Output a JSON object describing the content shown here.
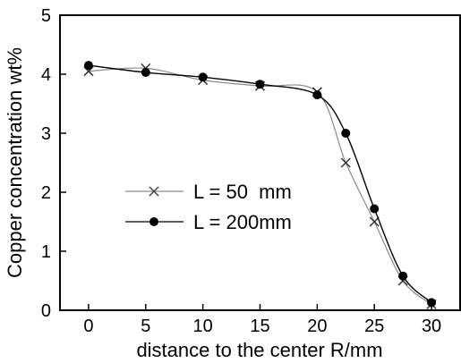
{
  "chart_data": {
    "type": "line",
    "xlabel": "distance to the center R/mm",
    "ylabel": "Copper concentration  wt%",
    "xlim": [
      -2.5,
      32.5
    ],
    "ylim": [
      0,
      5
    ],
    "xticks": [
      0,
      5,
      10,
      15,
      20,
      25,
      30
    ],
    "yticks": [
      0,
      1,
      2,
      3,
      4,
      5
    ],
    "grid": false,
    "legend_position": "center-left",
    "series": [
      {
        "name": "L = 50  mm",
        "marker": "x",
        "color": "#8a8a8a",
        "x": [
          0,
          5,
          10,
          15,
          20,
          22.5,
          25,
          27.5,
          30
        ],
        "y": [
          4.05,
          4.1,
          3.9,
          3.8,
          3.7,
          2.5,
          1.5,
          0.5,
          0.1
        ]
      },
      {
        "name": "L = 200mm",
        "marker": "filled-circle",
        "color": "#000000",
        "x": [
          0,
          5,
          10,
          15,
          20,
          22.5,
          25,
          27.5,
          30
        ],
        "y": [
          4.15,
          4.03,
          3.95,
          3.83,
          3.65,
          3.0,
          1.72,
          0.58,
          0.13
        ]
      }
    ]
  }
}
